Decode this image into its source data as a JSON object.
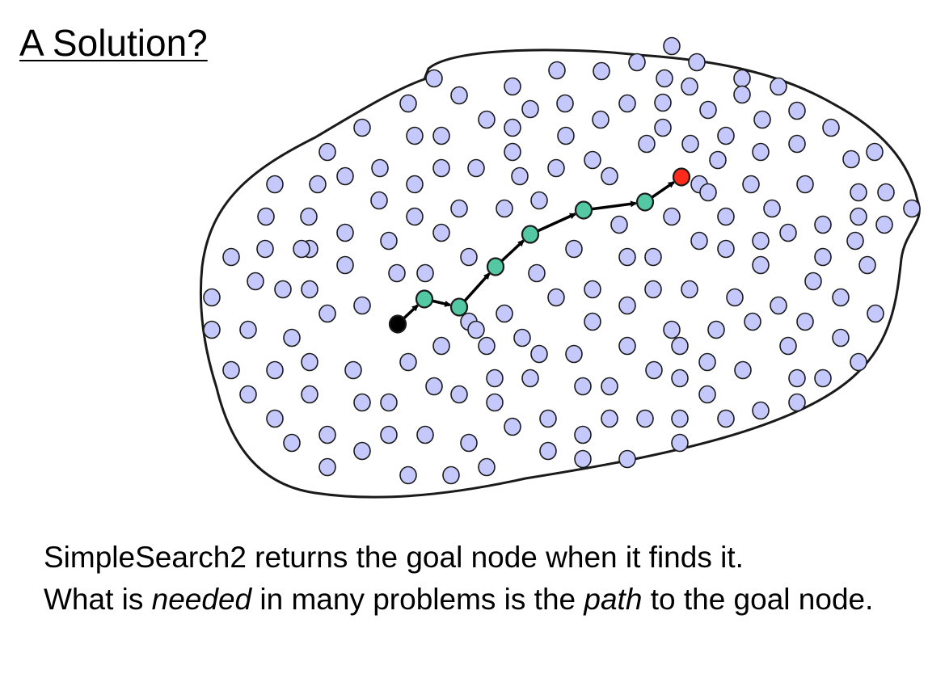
{
  "slide": {
    "title": "A Solution?"
  },
  "caption": {
    "seg1": "SimpleSearch2 returns the goal node when it finds it.",
    "seg2": "What is ",
    "seg3": "needed",
    "seg4": " in many problems is the ",
    "seg5": "path",
    "seg6": " to the goal node."
  },
  "colors": {
    "node_fill": "#c5c8fa",
    "path_fill": "#53c8a3",
    "start_fill": "#000000",
    "goal_fill": "#ff2a1a",
    "outline": "#1a1a1a"
  }
}
